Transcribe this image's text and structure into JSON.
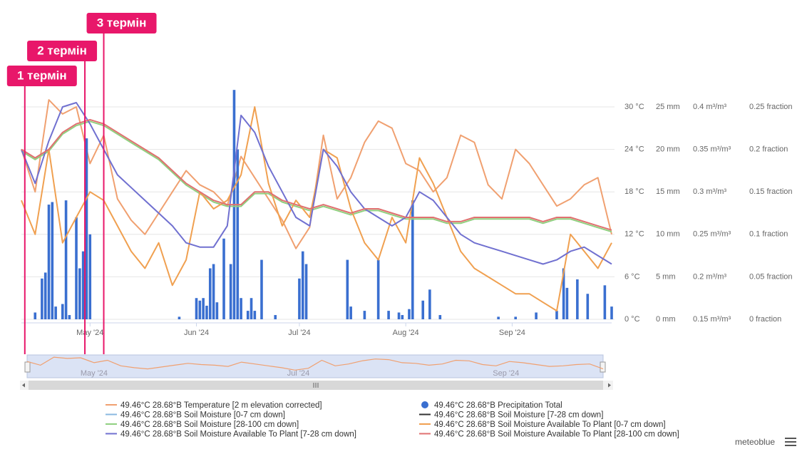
{
  "chart_data": {
    "type": "line",
    "x": [
      102,
      106,
      110,
      114,
      118,
      122,
      126,
      130,
      134,
      138,
      142,
      146,
      150,
      154,
      158,
      162,
      166,
      170,
      174,
      178,
      182,
      186,
      190,
      194,
      198,
      202,
      206,
      210,
      214,
      218,
      222,
      226,
      230,
      234,
      238,
      242,
      246,
      250,
      254,
      258,
      262,
      266,
      270,
      274
    ],
    "xlim": [
      102,
      274
    ],
    "xticks": [
      {
        "value": 122,
        "label": "May '24"
      },
      {
        "value": 153,
        "label": "Jun '24"
      },
      {
        "value": 183,
        "label": "Jul '24"
      },
      {
        "value": 214,
        "label": "Aug '24"
      },
      {
        "value": 245,
        "label": "Sep '24"
      }
    ],
    "ylim": [
      0,
      30
    ],
    "yticks": [
      {
        "value": 0,
        "label": "0 °C"
      },
      {
        "value": 6,
        "label": "6 °C"
      },
      {
        "value": 12,
        "label": "12 °C"
      },
      {
        "value": 18,
        "label": "18 °C"
      },
      {
        "value": 24,
        "label": "24 °C"
      },
      {
        "value": 30,
        "label": "30 °C"
      }
    ],
    "y2lim": [
      0,
      25
    ],
    "y2ticks": [
      {
        "value": 0,
        "label": "0 mm"
      },
      {
        "value": 5,
        "label": "5 mm"
      },
      {
        "value": 10,
        "label": "10 mm"
      },
      {
        "value": 15,
        "label": "15 mm"
      },
      {
        "value": 20,
        "label": "20 mm"
      },
      {
        "value": 25,
        "label": "25 mm"
      }
    ],
    "y3lim": [
      0.15,
      0.4
    ],
    "y3ticks": [
      {
        "value": 0.15,
        "label": "0.15 m³/m³"
      },
      {
        "value": 0.2,
        "label": "0.2 m³/m³"
      },
      {
        "value": 0.25,
        "label": "0.25 m³/m³"
      },
      {
        "value": 0.3,
        "label": "0.3 m³/m³"
      },
      {
        "value": 0.35,
        "label": "0.35 m³/m³"
      },
      {
        "value": 0.4,
        "label": "0.4 m³/m³"
      }
    ],
    "y4lim": [
      0,
      0.25
    ],
    "y4ticks": [
      {
        "value": 0,
        "label": "0 fraction"
      },
      {
        "value": 0.05,
        "label": "0.05 fraction"
      },
      {
        "value": 0.1,
        "label": "0.1 fraction"
      },
      {
        "value": 0.15,
        "label": "0.15 fraction"
      },
      {
        "value": 0.2,
        "label": "0.2 fraction"
      },
      {
        "value": 0.25,
        "label": "0.25 fraction"
      }
    ],
    "grid": true,
    "series": [
      {
        "name": "49.46°C 28.68°B Temperature [2 m elevation corrected]",
        "color": "#f0a070",
        "type": "line",
        "axis": "y",
        "values": [
          24,
          18,
          31,
          29,
          30,
          22,
          26,
          17,
          14,
          12,
          15,
          18,
          21,
          19,
          18,
          16,
          23,
          20,
          17,
          14,
          10,
          13,
          26,
          17,
          20,
          25,
          28,
          27,
          22,
          21,
          18,
          20,
          26,
          25,
          19,
          17,
          24,
          22,
          19,
          16,
          17,
          19,
          20,
          12
        ]
      },
      {
        "name": "49.46°C 28.68°B Precipitation Total",
        "color": "#3a6fd0",
        "type": "bar",
        "axis": "y2",
        "x": [
          106,
          108,
          109,
          110,
          111,
          112,
          114,
          115,
          116,
          118,
          119,
          120,
          121,
          122,
          148,
          153,
          154,
          155,
          156,
          157,
          158,
          159,
          161,
          163,
          164,
          165,
          166,
          168,
          169,
          170,
          172,
          176,
          183,
          184,
          185,
          197,
          198,
          202,
          206,
          209,
          212,
          213,
          215,
          216,
          219,
          221,
          224,
          241,
          246,
          252,
          258,
          260,
          261,
          264,
          267,
          272,
          274
        ],
        "values": [
          0.8,
          4.8,
          5.5,
          13.5,
          13.8,
          1.5,
          1.8,
          14,
          0.5,
          12,
          6,
          8,
          21.3,
          10,
          0.3,
          2.5,
          2.2,
          2.5,
          1.6,
          6,
          6.5,
          2,
          9.5,
          6.5,
          27,
          20,
          2.5,
          1,
          2.5,
          1,
          7,
          0.5,
          4.8,
          8,
          6.5,
          7,
          1.5,
          1,
          7,
          1,
          0.8,
          0.5,
          1.2,
          14,
          2.2,
          3.5,
          0.5,
          0.3,
          0.3,
          0.8,
          1,
          6,
          3.7,
          4.7,
          3,
          4,
          1.5
        ]
      },
      {
        "name": "49.46°C 28.68°B Soil Moisture [0-7 cm down]",
        "color": "#8ab8e0",
        "type": "line",
        "axis": "y3"
      },
      {
        "name": "49.46°C 28.68°B Soil Moisture [7-28 cm down]",
        "color": "#333333",
        "type": "line",
        "axis": "y3"
      },
      {
        "name": "49.46°C 28.68°B Soil Moisture [28-100 cm down]",
        "color": "#90d080",
        "type": "line",
        "axis": "y3",
        "values": [
          0.348,
          0.338,
          0.348,
          0.368,
          0.378,
          0.383,
          0.378,
          0.368,
          0.358,
          0.348,
          0.338,
          0.323,
          0.308,
          0.298,
          0.288,
          0.283,
          0.283,
          0.298,
          0.298,
          0.288,
          0.283,
          0.278,
          0.283,
          0.278,
          0.273,
          0.278,
          0.278,
          0.273,
          0.268,
          0.268,
          0.268,
          0.263,
          0.263,
          0.268,
          0.268,
          0.268,
          0.268,
          0.268,
          0.263,
          0.268,
          0.268,
          0.263,
          0.258,
          0.253
        ]
      },
      {
        "name": "49.46°C 28.68°B Soil Moisture Available To Plant [0-7 cm down]",
        "color": "#f0a050",
        "type": "line",
        "axis": "y4",
        "values": [
          0.14,
          0.1,
          0.2,
          0.09,
          0.12,
          0.15,
          0.14,
          0.11,
          0.08,
          0.06,
          0.09,
          0.04,
          0.07,
          0.15,
          0.13,
          0.14,
          0.17,
          0.25,
          0.16,
          0.11,
          0.14,
          0.12,
          0.2,
          0.19,
          0.13,
          0.09,
          0.07,
          0.12,
          0.09,
          0.19,
          0.16,
          0.12,
          0.08,
          0.06,
          0.05,
          0.04,
          0.03,
          0.03,
          0.02,
          0.01,
          0.1,
          0.08,
          0.06,
          0.09
        ]
      },
      {
        "name": "49.46°C 28.68°B Soil Moisture Available To Plant [7-28 cm down]",
        "color": "#7070d0",
        "type": "line",
        "axis": "y4",
        "values": [
          0.2,
          0.16,
          0.21,
          0.25,
          0.255,
          0.23,
          0.2,
          0.17,
          0.155,
          0.14,
          0.125,
          0.11,
          0.09,
          0.085,
          0.085,
          0.11,
          0.24,
          0.22,
          0.18,
          0.15,
          0.12,
          0.11,
          0.2,
          0.18,
          0.15,
          0.13,
          0.12,
          0.11,
          0.12,
          0.15,
          0.14,
          0.12,
          0.1,
          0.09,
          0.085,
          0.08,
          0.075,
          0.07,
          0.065,
          0.07,
          0.08,
          0.085,
          0.075,
          0.065
        ]
      },
      {
        "name": "49.46°C 28.68°B Soil Moisture Available To Plant [28-100 cm down]",
        "color": "#e07070",
        "type": "line",
        "axis": "y4",
        "values": [
          0.2,
          0.19,
          0.2,
          0.22,
          0.23,
          0.235,
          0.23,
          0.22,
          0.21,
          0.2,
          0.19,
          0.175,
          0.16,
          0.15,
          0.14,
          0.135,
          0.135,
          0.15,
          0.15,
          0.14,
          0.135,
          0.13,
          0.135,
          0.13,
          0.125,
          0.13,
          0.13,
          0.125,
          0.12,
          0.12,
          0.12,
          0.115,
          0.115,
          0.12,
          0.12,
          0.12,
          0.12,
          0.12,
          0.115,
          0.12,
          0.12,
          0.115,
          0.11,
          0.105
        ]
      }
    ],
    "annotations": [
      {
        "text": "1 термін",
        "x": 103,
        "color": "#e8176a"
      },
      {
        "text": "2 термін",
        "x": 120.5,
        "color": "#e8176a"
      },
      {
        "text": "3 термін",
        "x": 126,
        "color": "#e8176a"
      }
    ],
    "credit": "meteoblue"
  }
}
